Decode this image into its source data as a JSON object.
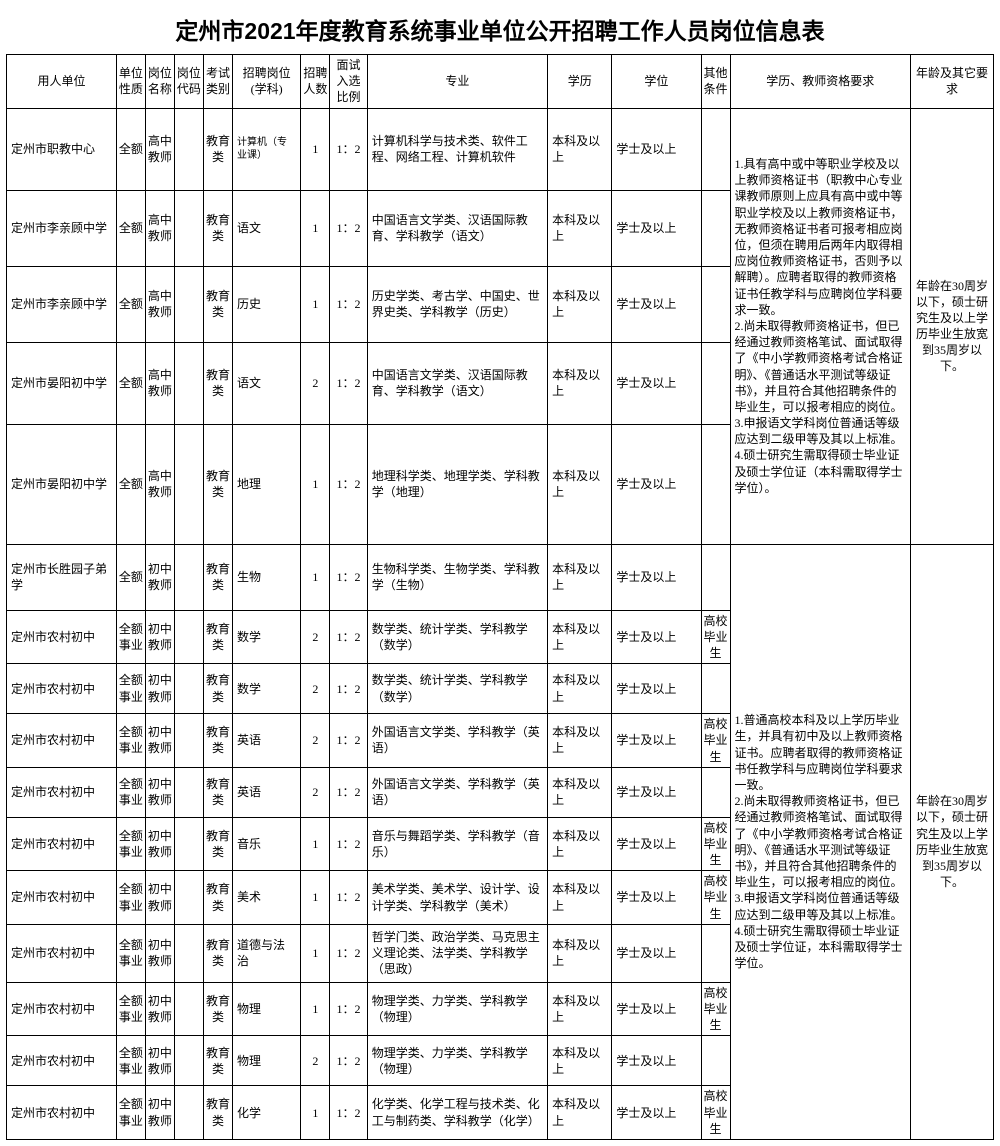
{
  "title": "定州市2021年度教育系统事业单位公开招聘工作人员岗位信息表",
  "headers": {
    "unit": "用人单位",
    "nature": "单位性质",
    "pos": "岗位名称",
    "code": "岗位代码",
    "exam": "考试类别",
    "subj": "招聘岗位(学科)",
    "num": "招聘人数",
    "ratio": "面试入选比例",
    "major": "专业",
    "edu": "学历",
    "deg": "学位",
    "other": "其他条件",
    "req": "学历、教师资格要求",
    "age": "年龄及其它要求"
  },
  "req_block1": "1.具有高中或中等职业学校及以上教师资格证书（职教中心专业课教师原则上应具有高中或中等职业学校及以上教师资格证书，无教师资格证书者可报考相应岗位，但须在聘用后两年内取得相应岗位教师资格证书，否则予以解聘）。应聘者取得的教师资格证书任教学科与应聘岗位学科要求一致。\n2.尚未取得教师资格证书，但已经通过教师资格笔试、面试取得了《中小学教师资格考试合格证明》、《普通话水平测试等级证书》，并且符合其他招聘条件的毕业生，可以报考相应的岗位。\n3.申报语文学科岗位普通话等级应达到二级甲等及其以上标准。\n4.硕士研究生需取得硕士毕业证及硕士学位证（本科需取得学士学位）。",
  "req_block2": "1.普通高校本科及以上学历毕业生，并具有初中及以上教师资格证书。应聘者取得的教师资格证书任教学科与应聘岗位学科要求一致。\n2.尚未取得教师资格证书，但已经通过教师资格笔试、面试取得了《中小学教师资格考试合格证明》、《普通话水平测试等级证书》，并且符合其他招聘条件的毕业生，可以报考相应的岗位。\n3.申报语文学科岗位普通话等级应达到二级甲等及其以上标准。\n4.硕士研究生需取得硕士毕业证及硕士学位证，本科需取得学士学位。",
  "age_block": "年龄在30周岁以下，硕士研究生及以上学历毕业生放宽到35周岁以下。",
  "rows": [
    {
      "unit": "定州市职教中心",
      "nature": "全额",
      "pos": "高中教师",
      "code": "",
      "exam": "教育类",
      "subj": "计算机（专业课）",
      "num": "1",
      "ratio": "1：2",
      "major": "计算机科学与技术类、软件工程、网络工程、计算机软件",
      "edu": "本科及以上",
      "deg": "学士及以上",
      "other": ""
    },
    {
      "unit": "定州市李亲顾中学",
      "nature": "全额",
      "pos": "高中教师",
      "code": "",
      "exam": "教育类",
      "subj": "语文",
      "num": "1",
      "ratio": "1：2",
      "major": "中国语言文学类、汉语国际教育、学科教学（语文）",
      "edu": "本科及以上",
      "deg": "学士及以上",
      "other": ""
    },
    {
      "unit": "定州市李亲顾中学",
      "nature": "全额",
      "pos": "高中教师",
      "code": "",
      "exam": "教育类",
      "subj": "历史",
      "num": "1",
      "ratio": "1：2",
      "major": "历史学类、考古学、中国史、世界史类、学科教学（历史）",
      "edu": "本科及以上",
      "deg": "学士及以上",
      "other": ""
    },
    {
      "unit": "定州市晏阳初中学",
      "nature": "全额",
      "pos": "高中教师",
      "code": "",
      "exam": "教育类",
      "subj": "语文",
      "num": "2",
      "ratio": "1：2",
      "major": "中国语言文学类、汉语国际教育、学科教学（语文）",
      "edu": "本科及以上",
      "deg": "学士及以上",
      "other": ""
    },
    {
      "unit": "定州市晏阳初中学",
      "nature": "全额",
      "pos": "高中教师",
      "code": "",
      "exam": "教育类",
      "subj": "地理",
      "num": "1",
      "ratio": "1：2",
      "major": "地理科学类、地理学类、学科教学（地理）",
      "edu": "本科及以上",
      "deg": "学士及以上",
      "other": ""
    },
    {
      "unit": "定州市长胜园子弟学",
      "nature": "全额",
      "pos": "初中教师",
      "code": "",
      "exam": "教育类",
      "subj": "生物",
      "num": "1",
      "ratio": "1：2",
      "major": "生物科学类、生物学类、学科教学（生物）",
      "edu": "本科及以上",
      "deg": "学士及以上",
      "other": ""
    },
    {
      "unit": "定州市农村初中",
      "nature": "全额事业",
      "pos": "初中教师",
      "code": "",
      "exam": "教育类",
      "subj": "数学",
      "num": "2",
      "ratio": "1：2",
      "major": "数学类、统计学类、学科教学（数学）",
      "edu": "本科及以上",
      "deg": "学士及以上",
      "other": "高校毕业生"
    },
    {
      "unit": "定州市农村初中",
      "nature": "全额事业",
      "pos": "初中教师",
      "code": "",
      "exam": "教育类",
      "subj": "数学",
      "num": "2",
      "ratio": "1：2",
      "major": "数学类、统计学类、学科教学（数学）",
      "edu": "本科及以上",
      "deg": "学士及以上",
      "other": ""
    },
    {
      "unit": "定州市农村初中",
      "nature": "全额事业",
      "pos": "初中教师",
      "code": "",
      "exam": "教育类",
      "subj": "英语",
      "num": "2",
      "ratio": "1：2",
      "major": "外国语言文学类、学科教学（英语）",
      "edu": "本科及以上",
      "deg": "学士及以上",
      "other": "高校毕业生"
    },
    {
      "unit": "定州市农村初中",
      "nature": "全额事业",
      "pos": "初中教师",
      "code": "",
      "exam": "教育类",
      "subj": "英语",
      "num": "2",
      "ratio": "1：2",
      "major": "外国语言文学类、学科教学（英语）",
      "edu": "本科及以上",
      "deg": "学士及以上",
      "other": ""
    },
    {
      "unit": "定州市农村初中",
      "nature": "全额事业",
      "pos": "初中教师",
      "code": "",
      "exam": "教育类",
      "subj": "音乐",
      "num": "1",
      "ratio": "1：2",
      "major": "音乐与舞蹈学类、学科教学（音乐）",
      "edu": "本科及以上",
      "deg": "学士及以上",
      "other": "高校毕业生"
    },
    {
      "unit": "定州市农村初中",
      "nature": "全额事业",
      "pos": "初中教师",
      "code": "",
      "exam": "教育类",
      "subj": "美术",
      "num": "1",
      "ratio": "1：2",
      "major": "美术学类、美术学、设计学、设计学类、学科教学（美术）",
      "edu": "本科及以上",
      "deg": "学士及以上",
      "other": "高校毕业生"
    },
    {
      "unit": "定州市农村初中",
      "nature": "全额事业",
      "pos": "初中教师",
      "code": "",
      "exam": "教育类",
      "subj": "道德与法治",
      "num": "1",
      "ratio": "1：2",
      "major": "哲学门类、政治学类、马克思主义理论类、法学类、学科教学（思政）",
      "edu": "本科及以上",
      "deg": "学士及以上",
      "other": ""
    },
    {
      "unit": "定州市农村初中",
      "nature": "全额事业",
      "pos": "初中教师",
      "code": "",
      "exam": "教育类",
      "subj": "物理",
      "num": "1",
      "ratio": "1：2",
      "major": "物理学类、力学类、学科教学（物理）",
      "edu": "本科及以上",
      "deg": "学士及以上",
      "other": "高校毕业生"
    },
    {
      "unit": "定州市农村初中",
      "nature": "全额事业",
      "pos": "初中教师",
      "code": "",
      "exam": "教育类",
      "subj": "物理",
      "num": "2",
      "ratio": "1：2",
      "major": "物理学类、力学类、学科教学（物理）",
      "edu": "本科及以上",
      "deg": "学士及以上",
      "other": ""
    },
    {
      "unit": "定州市农村初中",
      "nature": "全额事业",
      "pos": "初中教师",
      "code": "",
      "exam": "教育类",
      "subj": "化学",
      "num": "1",
      "ratio": "1：2",
      "major": "化学类、化学工程与技术类、化工与制药类、学科教学（化学）",
      "edu": "本科及以上",
      "deg": "学士及以上",
      "other": "高校毕业生"
    }
  ]
}
